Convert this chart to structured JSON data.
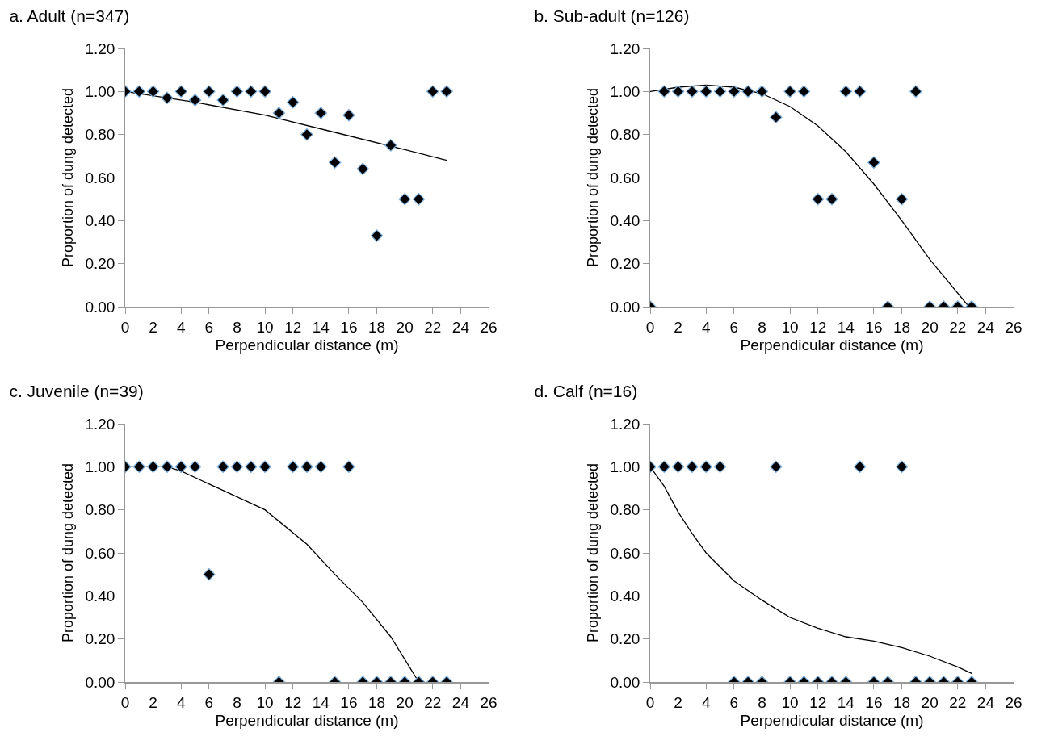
{
  "chart_data": [
    {
      "type": "scatter",
      "title": "a. Adult (n=347)",
      "xlabel": "Perpendicular distance (m)",
      "ylabel": "Proportion of dung detected",
      "xlim": [
        0,
        26
      ],
      "xticks": [
        0,
        2,
        4,
        6,
        8,
        10,
        12,
        14,
        16,
        18,
        20,
        22,
        24,
        26
      ],
      "ylim": [
        0,
        1.2
      ],
      "yticks": [
        {
          "value": 0,
          "label": "0.00"
        },
        {
          "value": 0.2,
          "label": "0.20"
        },
        {
          "value": 0.4,
          "label": "0.40"
        },
        {
          "value": 0.6,
          "label": "0.60"
        },
        {
          "value": 0.8,
          "label": "0.80"
        },
        {
          "value": 1,
          "label": "1.00"
        },
        {
          "value": 1.2,
          "label": "1.20"
        }
      ],
      "grid": false,
      "x": [
        0,
        1,
        2,
        3,
        4,
        5,
        6,
        7,
        8,
        9,
        10,
        11,
        12,
        13,
        14,
        15,
        16,
        17,
        18,
        19,
        20,
        21,
        22,
        23
      ],
      "series": [
        {
          "marker": "diamond",
          "color": "#000000",
          "values": [
            1,
            1,
            1,
            0.97,
            1,
            0.96,
            1,
            0.96,
            1,
            1,
            1,
            0.9,
            0.95,
            0.8,
            0.9,
            0.67,
            0.89,
            0.64,
            0.33,
            0.75,
            0.5,
            0.5,
            1,
            1
          ]
        },
        {
          "type": "line",
          "color": "#000000",
          "x": [
            0,
            5,
            10,
            15,
            20,
            23
          ],
          "values": [
            1,
            0.95,
            0.89,
            0.81,
            0.73,
            0.68
          ]
        }
      ]
    },
    {
      "type": "scatter",
      "title": "b. Sub-adult (n=126)",
      "xlabel": "Perpendicular distance (m)",
      "ylabel": "Proportion of dung detected",
      "xlim": [
        0,
        26
      ],
      "xticks": [
        0,
        2,
        4,
        6,
        8,
        10,
        12,
        14,
        16,
        18,
        20,
        22,
        24,
        26
      ],
      "ylim": [
        0,
        1.2
      ],
      "yticks": [
        {
          "value": 0,
          "label": "0.00"
        },
        {
          "value": 0.2,
          "label": "0.20"
        },
        {
          "value": 0.4,
          "label": "0.40"
        },
        {
          "value": 0.6,
          "label": "0.60"
        },
        {
          "value": 0.8,
          "label": "0.80"
        },
        {
          "value": 1,
          "label": "1.00"
        },
        {
          "value": 1.2,
          "label": "1.20"
        }
      ],
      "grid": false,
      "x": [
        0,
        1,
        2,
        3,
        4,
        5,
        6,
        7,
        8,
        9,
        10,
        11,
        12,
        13,
        14,
        15,
        16,
        17,
        18,
        19,
        20,
        21,
        22,
        23
      ],
      "series": [
        {
          "marker": "diamond",
          "color": "#000000",
          "values": [
            0,
            1,
            1,
            1,
            1,
            1,
            1,
            1,
            1,
            0.88,
            1,
            1,
            0.5,
            0.5,
            1,
            1,
            0.67,
            0,
            0.5,
            1,
            0,
            0,
            0,
            0
          ]
        },
        {
          "type": "line",
          "color": "#000000",
          "x": [
            0,
            2,
            4,
            6,
            8,
            10,
            12,
            14,
            16,
            18,
            20,
            22.8
          ],
          "values": [
            1,
            1.02,
            1.03,
            1.02,
            0.99,
            0.93,
            0.84,
            0.72,
            0.57,
            0.4,
            0.22,
            0
          ]
        }
      ]
    },
    {
      "type": "scatter",
      "title": "c. Juvenile (n=39)",
      "xlabel": "Perpendicular distance (m)",
      "ylabel": "Proportion of dung detected",
      "xlim": [
        0,
        26
      ],
      "xticks": [
        0,
        2,
        4,
        6,
        8,
        10,
        12,
        14,
        16,
        18,
        20,
        22,
        24,
        26
      ],
      "ylim": [
        0,
        1.2
      ],
      "yticks": [
        {
          "value": 0,
          "label": "0.00"
        },
        {
          "value": 0.2,
          "label": "0.20"
        },
        {
          "value": 0.4,
          "label": "0.40"
        },
        {
          "value": 0.6,
          "label": "0.60"
        },
        {
          "value": 0.8,
          "label": "0.80"
        },
        {
          "value": 1,
          "label": "1.00"
        },
        {
          "value": 1.2,
          "label": "1.20"
        }
      ],
      "grid": false,
      "x": [
        0,
        1,
        2,
        3,
        4,
        5,
        6,
        7,
        8,
        9,
        10,
        11,
        12,
        13,
        14,
        15,
        16,
        17,
        18,
        19,
        20,
        21,
        22,
        23
      ],
      "series": [
        {
          "marker": "diamond",
          "color": "#000000",
          "values": [
            1,
            1,
            1,
            1,
            1,
            1,
            0.5,
            1,
            1,
            1,
            1,
            0,
            1,
            1,
            1,
            0,
            1,
            0,
            0,
            0,
            0,
            0,
            0,
            0
          ]
        },
        {
          "type": "line",
          "color": "#000000",
          "x": [
            0,
            3,
            4,
            7,
            10,
            13,
            15,
            17,
            19,
            21
          ],
          "values": [
            1,
            1,
            0.98,
            0.89,
            0.8,
            0.64,
            0.5,
            0.37,
            0.21,
            0
          ]
        }
      ]
    },
    {
      "type": "scatter",
      "title": "d. Calf (n=16)",
      "xlabel": "Perpendicular distance (m)",
      "ylabel": "Proportion of dung detected",
      "xlim": [
        0,
        26
      ],
      "xticks": [
        0,
        2,
        4,
        6,
        8,
        10,
        12,
        14,
        16,
        18,
        20,
        22,
        24,
        26
      ],
      "ylim": [
        0,
        1.2
      ],
      "yticks": [
        {
          "value": 0,
          "label": "0.00"
        },
        {
          "value": 0.2,
          "label": "0.20"
        },
        {
          "value": 0.4,
          "label": "0.40"
        },
        {
          "value": 0.6,
          "label": "0.60"
        },
        {
          "value": 0.8,
          "label": "0.80"
        },
        {
          "value": 1,
          "label": "1.00"
        },
        {
          "value": 1.2,
          "label": "1.20"
        }
      ],
      "grid": false,
      "x": [
        0,
        1,
        2,
        3,
        4,
        5,
        6,
        7,
        8,
        9,
        10,
        11,
        12,
        13,
        14,
        15,
        16,
        17,
        18,
        19,
        20,
        21,
        22,
        23
      ],
      "series": [
        {
          "marker": "diamond",
          "color": "#000000",
          "values": [
            1,
            1,
            1,
            1,
            1,
            1,
            0,
            0,
            0,
            1,
            0,
            0,
            0,
            0,
            0,
            1,
            0,
            0,
            1,
            0,
            0,
            0,
            0,
            0
          ]
        },
        {
          "type": "line",
          "color": "#000000",
          "x": [
            0,
            1,
            2,
            3,
            4,
            6,
            8,
            10,
            12,
            14,
            16,
            18,
            20,
            22,
            23
          ],
          "values": [
            1,
            0.91,
            0.79,
            0.69,
            0.6,
            0.47,
            0.38,
            0.3,
            0.25,
            0.21,
            0.19,
            0.16,
            0.12,
            0.07,
            0.04
          ]
        }
      ]
    }
  ]
}
